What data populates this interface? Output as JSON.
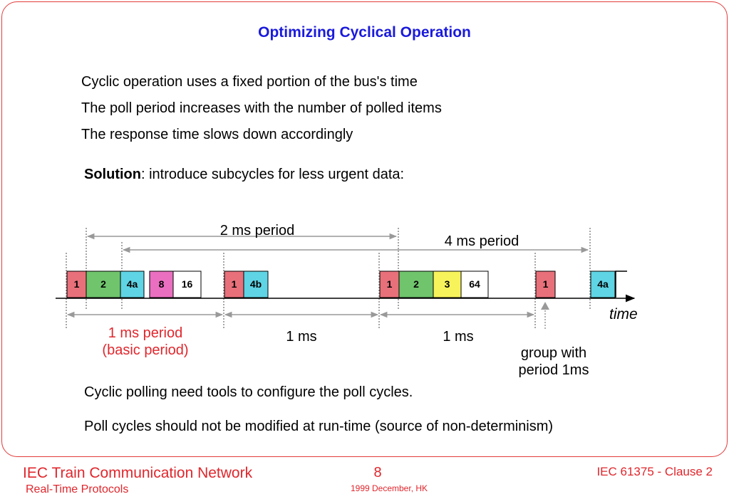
{
  "title": "Optimizing Cyclical Operation",
  "bullets": [
    "Cyclic operation uses a fixed portion of the bus's time",
    "The poll period  increases with the number of polled items",
    "The response time slows down accordingly"
  ],
  "solution": {
    "label": "Solution",
    "text": ":  introduce subcycles for less urgent data:"
  },
  "diagram": {
    "period_2ms": "2 ms period",
    "period_4ms": "4 ms period",
    "time_label": "time",
    "basic_period_line1": "1 ms period",
    "basic_period_line2": "(basic period)",
    "interval_1": "1 ms",
    "interval_2": "1 ms",
    "group_line1": "group with",
    "group_line2": "period 1ms",
    "colors": {
      "red": "#e8707a",
      "green": "#6fc46c",
      "cyan": "#5fd4e4",
      "magenta": "#ea6fc0",
      "yellow": "#f7f35a",
      "white": "#ffffff",
      "basic_period_text": "#e0262c"
    },
    "frames": [
      {
        "label": "1",
        "color": "red"
      },
      {
        "label": "2",
        "color": "green"
      },
      {
        "label": "4a",
        "color": "cyan"
      },
      {
        "label": "8",
        "color": "magenta"
      },
      {
        "label": "16",
        "color": "white"
      },
      {
        "label": "1",
        "color": "red"
      },
      {
        "label": "4b",
        "color": "cyan"
      },
      {
        "label": "1",
        "color": "red"
      },
      {
        "label": "2",
        "color": "green"
      },
      {
        "label": "3",
        "color": "yellow"
      },
      {
        "label": "64",
        "color": "white"
      },
      {
        "label": "1",
        "color": "red"
      },
      {
        "label": "4a",
        "color": "cyan"
      }
    ]
  },
  "notes": [
    "Cyclic polling need tools to configure the poll cycles.",
    "Poll cycles should not be modified at run-time (source of non-determinism)"
  ],
  "footer": {
    "left_title": "IEC Train Communication Network",
    "left_subtitle": "Real-Time Protocols",
    "page": "8",
    "date": "1999 December, HK",
    "right": "IEC 61375 - Clause 2"
  }
}
